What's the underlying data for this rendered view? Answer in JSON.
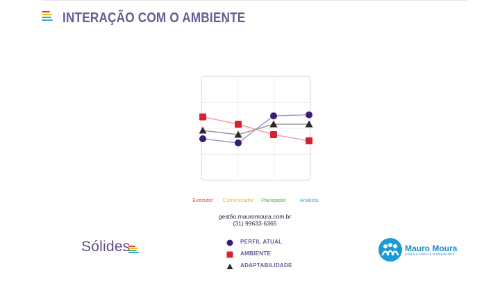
{
  "slide": {
    "title": "INTERAÇÃO COM O AMBIENTE",
    "title_mark": ",",
    "contact_site": "gestão.mauromoura.com.br",
    "contact_phone": "(31) 99633-6365"
  },
  "chart_data": {
    "type": "line",
    "categories": [
      "Executor",
      "Comunicador",
      "Planejador",
      "Analista"
    ],
    "category_colors": [
      "#e0413f",
      "#f3b61f",
      "#3fb54a",
      "#35a7dd"
    ],
    "ylim": [
      0,
      100
    ],
    "grid": true,
    "legend_position": "bottom",
    "series": [
      {
        "name": "PERFIL ATUAL",
        "marker": "circle",
        "marker_color": "#3b1c6e",
        "line_color": "#a79bd0",
        "values": [
          40,
          36,
          62,
          63
        ]
      },
      {
        "name": "AMBIENTE",
        "marker": "square",
        "marker_color": "#d9202e",
        "line_color": "#f0a1a3",
        "values": [
          61,
          54,
          44,
          38
        ]
      },
      {
        "name": "ADAPTABILIDADE",
        "marker": "triangle",
        "marker_color": "#2b2b2b",
        "line_color": "#9a9a9a",
        "values": [
          48,
          44,
          54,
          54
        ]
      }
    ]
  },
  "brands": {
    "left_logo": "Sólides",
    "right_name": "Mauro Moura",
    "right_tagline": "CONSULTORIA & WORKSHOPS"
  },
  "colors": {
    "title": "#6b5a94",
    "accent_bars": [
      "#e0413f",
      "#f3b61f",
      "#3fb54a",
      "#35a7dd"
    ]
  }
}
